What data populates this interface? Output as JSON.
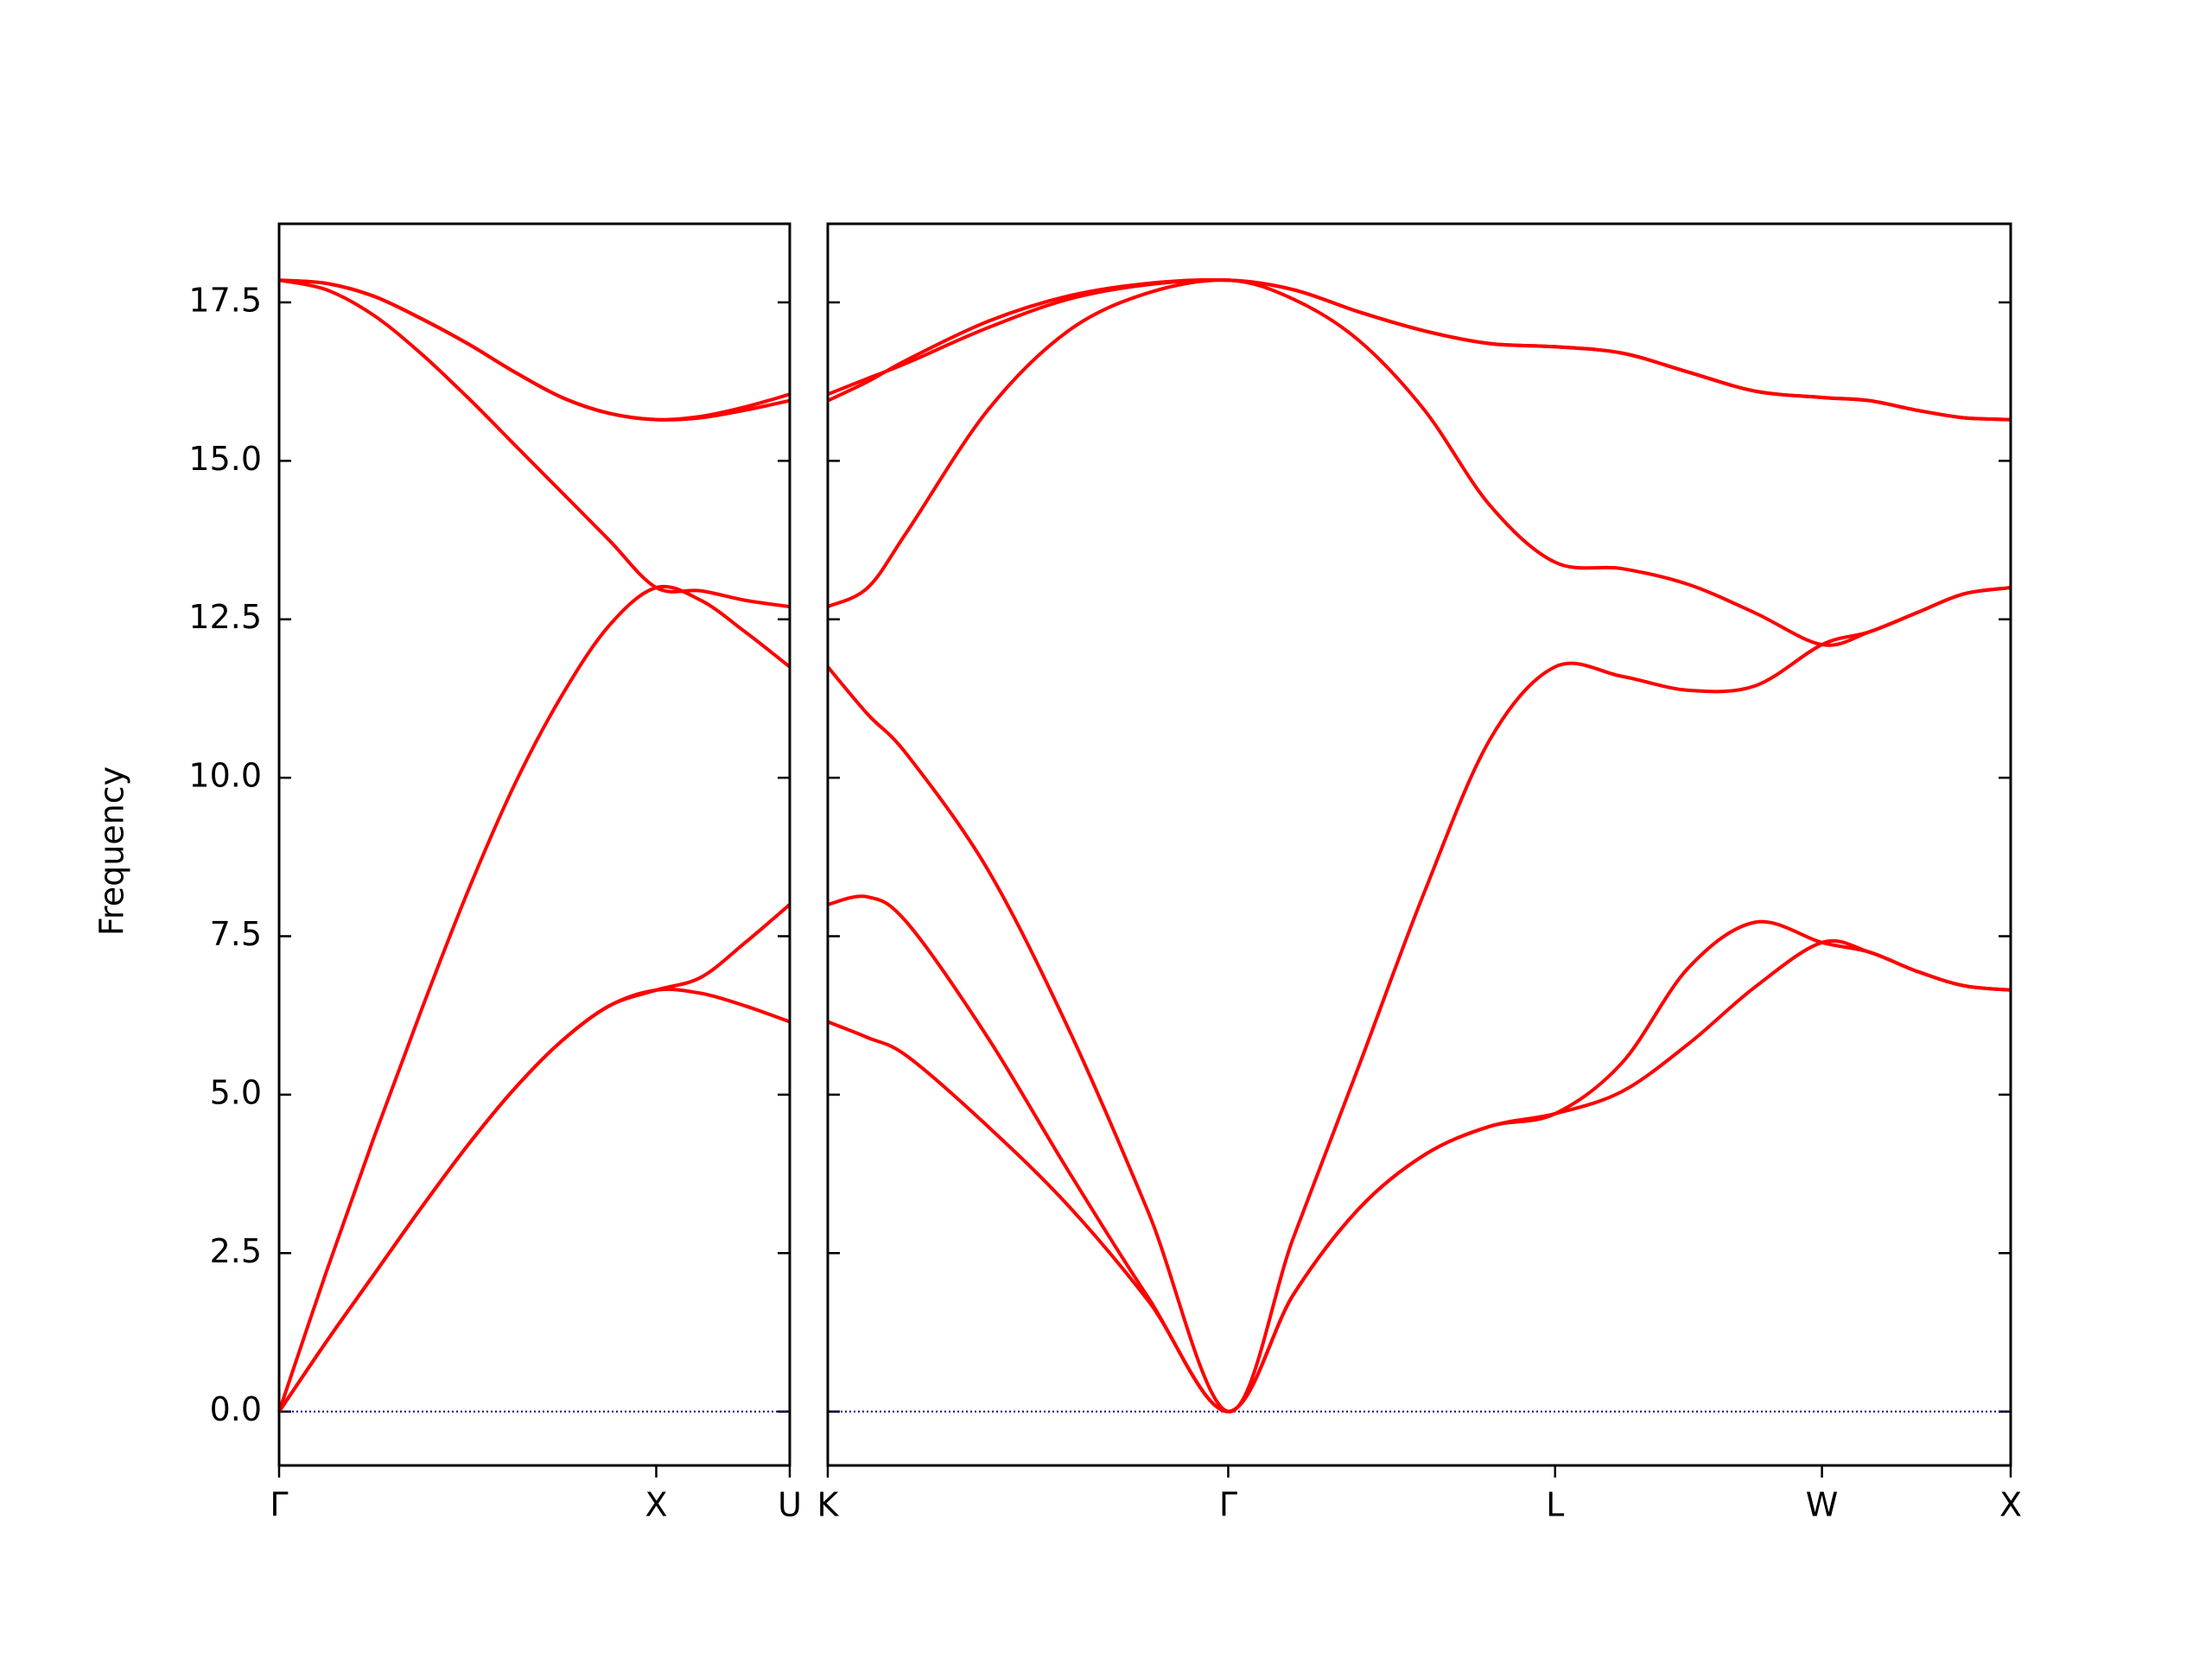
{
  "chart_data": [
    {
      "type": "line",
      "ylabel": "Frequency",
      "x": [
        0,
        0.125,
        0.25,
        0.375,
        0.5,
        0.625,
        0.75,
        0.875,
        1,
        1.118,
        1.236,
        1.354
      ],
      "xlim": [
        0,
        1.354
      ],
      "xticks": [
        {
          "value": 0,
          "label": "Γ"
        },
        {
          "value": 1,
          "label": "X"
        },
        {
          "value": 1.354,
          "label": "U"
        }
      ],
      "ylim": [
        -0.85,
        18.74
      ],
      "yticks": [
        {
          "value": 0,
          "label": "0.0"
        },
        2.5,
        {
          "value": 5,
          "label": "5.0"
        },
        7.5,
        {
          "value": 10,
          "label": "10.0"
        },
        12.5,
        {
          "value": 15,
          "label": "15.0"
        },
        17.5
      ],
      "hlines": [
        {
          "y": 0,
          "color": "#00008b"
        }
      ],
      "series": [
        {
          "color": "#ff0000",
          "values": [
            0,
            1.1,
            2.15,
            3.2,
            4.2,
            5.1,
            5.85,
            6.4,
            6.65,
            6.6,
            6.4,
            6.15
          ]
        },
        {
          "color": "#ff0000",
          "values": [
            0,
            1.1,
            2.15,
            3.2,
            4.2,
            5.1,
            5.85,
            6.4,
            6.65,
            6.85,
            7.4,
            8.0
          ]
        },
        {
          "color": "#ff0000",
          "values": [
            0,
            2.2,
            4.3,
            6.3,
            8.2,
            9.9,
            11.3,
            12.4,
            13.0,
            12.8,
            12.3,
            11.75
          ]
        },
        {
          "color": "#ff0000",
          "values": [
            17.85,
            17.7,
            17.3,
            16.7,
            16.0,
            15.25,
            14.5,
            13.75,
            13.0,
            12.95,
            12.8,
            12.7
          ]
        },
        {
          "color": "#ff0000",
          "values": [
            17.85,
            17.8,
            17.6,
            17.25,
            16.85,
            16.4,
            16.0,
            15.75,
            15.65,
            15.7,
            15.85,
            16.05
          ]
        },
        {
          "color": "#ff0000",
          "values": [
            17.85,
            17.8,
            17.6,
            17.25,
            16.85,
            16.4,
            16.0,
            15.75,
            15.65,
            15.68,
            15.8,
            15.95
          ]
        }
      ]
    },
    {
      "type": "line",
      "x": [
        1.354,
        1.46,
        1.566,
        1.778,
        1.991,
        2.203,
        2.415,
        2.588,
        2.761,
        2.935,
        3.108,
        3.281,
        3.458,
        3.634,
        3.811,
        3.988,
        4.113,
        4.238,
        4.363,
        4.488
      ],
      "xlim": [
        1.354,
        4.488
      ],
      "xticks": [
        {
          "value": 1.354,
          "label": "K"
        },
        {
          "value": 2.415,
          "label": "Γ"
        },
        {
          "value": 3.281,
          "label": "L"
        },
        {
          "value": 3.988,
          "label": "W"
        },
        {
          "value": 4.488,
          "label": "X"
        }
      ],
      "ylim": [
        -0.85,
        18.74
      ],
      "hlines": [
        {
          "y": 0,
          "color": "#00008b"
        }
      ],
      "series": [
        {
          "color": "#ff0000",
          "values": [
            6.15,
            5.9,
            5.6,
            4.5,
            3.25,
            1.75,
            0,
            1.85,
            3.2,
            4.05,
            4.5,
            4.7,
            5.05,
            5.8,
            6.7,
            7.4,
            7.25,
            6.95,
            6.72,
            6.65
          ]
        },
        {
          "color": "#ff0000",
          "values": [
            8.0,
            8.12,
            7.7,
            5.9,
            3.8,
            1.8,
            0,
            1.85,
            3.2,
            4.05,
            4.5,
            4.7,
            5.5,
            7.0,
            7.72,
            7.4,
            7.25,
            6.95,
            6.72,
            6.65
          ]
        },
        {
          "color": "#ff0000",
          "values": [
            11.75,
            11.0,
            10.35,
            8.55,
            6.05,
            3.15,
            0,
            2.75,
            5.45,
            8.2,
            10.6,
            11.75,
            11.6,
            11.38,
            11.45,
            12.1,
            12.3,
            12.6,
            12.9,
            13.0
          ]
        },
        {
          "color": "#ff0000",
          "values": [
            12.7,
            13.0,
            13.9,
            15.8,
            17.05,
            17.65,
            17.85,
            17.55,
            16.9,
            15.8,
            14.3,
            13.4,
            13.3,
            13.05,
            12.6,
            12.1,
            12.3,
            12.6,
            12.9,
            13.0
          ]
        },
        {
          "color": "#ff0000",
          "values": [
            16.05,
            16.3,
            16.55,
            17.1,
            17.55,
            17.78,
            17.85,
            17.7,
            17.35,
            17.05,
            16.85,
            16.8,
            16.7,
            16.4,
            16.1,
            16.0,
            15.95,
            15.8,
            15.68,
            15.65
          ]
        },
        {
          "color": "#ff0000",
          "values": [
            15.95,
            16.25,
            16.6,
            17.2,
            17.6,
            17.8,
            17.85,
            17.7,
            17.35,
            17.05,
            16.85,
            16.8,
            16.7,
            16.4,
            16.1,
            16.0,
            15.95,
            15.8,
            15.68,
            15.65
          ]
        }
      ]
    }
  ]
}
